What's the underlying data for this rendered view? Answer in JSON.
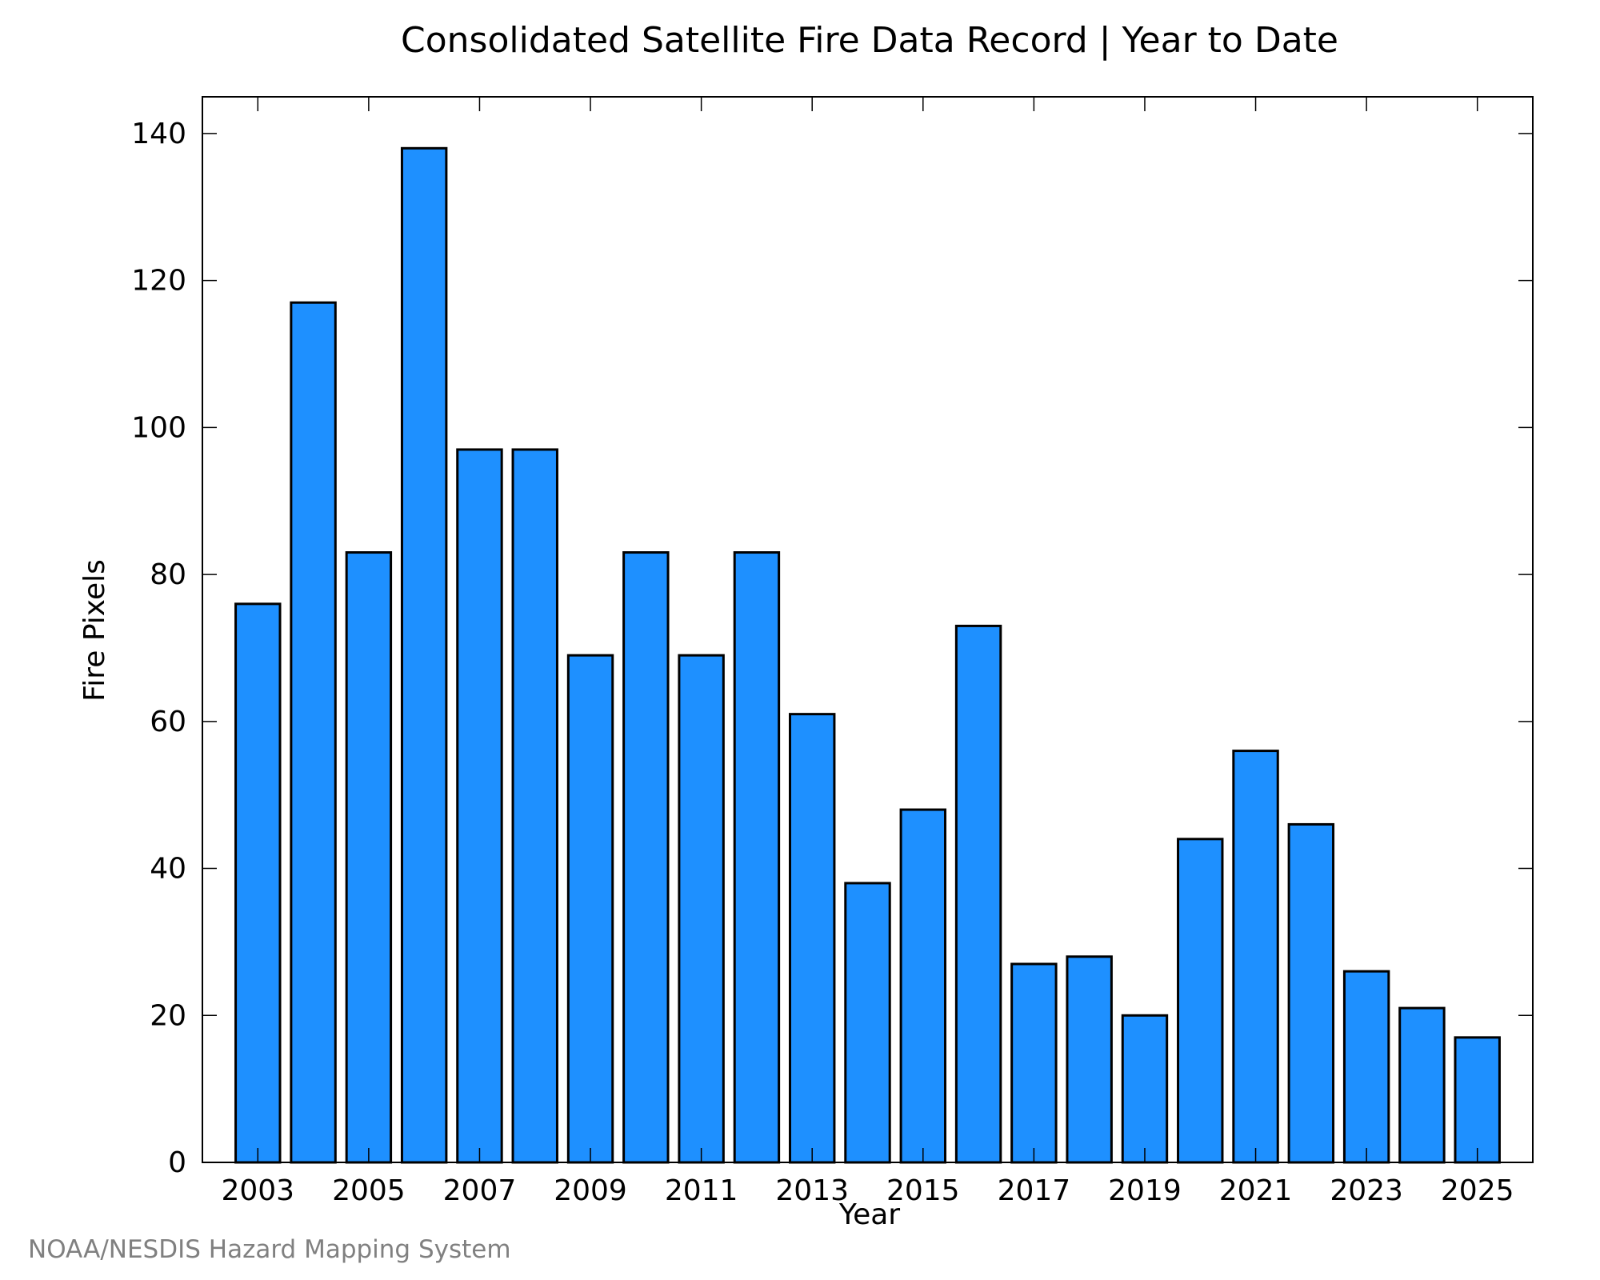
{
  "footer": {
    "credit": "NOAA/NESDIS Hazard Mapping System"
  },
  "chart_data": {
    "type": "bar",
    "title": "Consolidated Satellite Fire Data Record | Year to Date",
    "xlabel": "Year",
    "ylabel": "Fire Pixels",
    "categories": [
      "2003",
      "2004",
      "2005",
      "2006",
      "2007",
      "2008",
      "2009",
      "2010",
      "2011",
      "2012",
      "2013",
      "2014",
      "2015",
      "2016",
      "2017",
      "2018",
      "2019",
      "2020",
      "2021",
      "2022",
      "2023",
      "2024",
      "2025"
    ],
    "values": [
      76,
      117,
      83,
      138,
      97,
      97,
      69,
      83,
      69,
      83,
      61,
      38,
      48,
      73,
      27,
      28,
      20,
      44,
      56,
      46,
      26,
      21,
      17
    ],
    "x_tick_labels": [
      "2003",
      "2005",
      "2007",
      "2009",
      "2011",
      "2013",
      "2015",
      "2017",
      "2019",
      "2021",
      "2023",
      "2025"
    ],
    "y_ticks": [
      0,
      20,
      40,
      60,
      80,
      100,
      120,
      140
    ],
    "ylim": [
      0,
      145
    ],
    "grid": false,
    "bar_color": "#1E90FF"
  }
}
